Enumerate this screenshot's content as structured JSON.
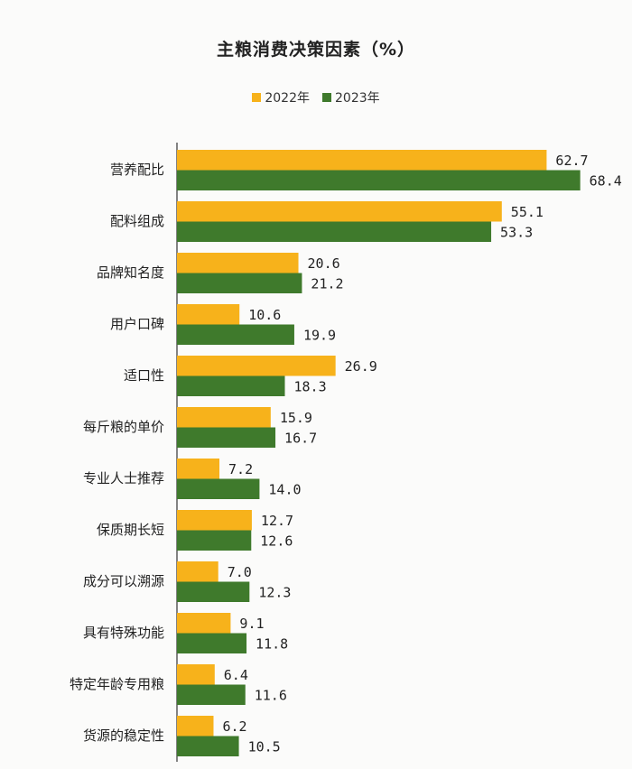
{
  "chart_data": {
    "type": "bar",
    "orientation": "horizontal",
    "title": "主粮消费决策因素（%）",
    "categories": [
      "营养配比",
      "配料组成",
      "品牌知名度",
      "用户口碑",
      "适口性",
      "每斤粮的单价",
      "专业人士推荐",
      "保质期长短",
      "成分可以溯源",
      "具有特殊功能",
      "特定年龄专用粮",
      "货源的稳定性"
    ],
    "series": [
      {
        "name": "2022年",
        "color": "#f7b21b",
        "values": [
          62.7,
          55.1,
          20.6,
          10.6,
          26.9,
          15.9,
          7.2,
          12.7,
          7.0,
          9.1,
          6.4,
          6.2
        ],
        "labels": [
          "62.7",
          "55.1",
          "20.6",
          "10.6",
          "26.9",
          "15.9",
          "7.2",
          "12.7",
          "7.0",
          "9.1",
          "6.4",
          "6.2"
        ]
      },
      {
        "name": "2023年",
        "color": "#3f7a2c",
        "values": [
          68.4,
          53.3,
          21.2,
          19.9,
          18.3,
          16.7,
          14.0,
          12.6,
          12.3,
          11.8,
          11.6,
          10.5
        ],
        "labels": [
          "68.4",
          "53.3",
          "21.2",
          "19.9",
          "18.3",
          "16.7",
          "14.0",
          "12.6",
          "12.3",
          "11.8",
          "11.6",
          "10.5"
        ]
      }
    ],
    "xlim": [
      0,
      73
    ],
    "legend_position": "top-center",
    "grid": false
  }
}
